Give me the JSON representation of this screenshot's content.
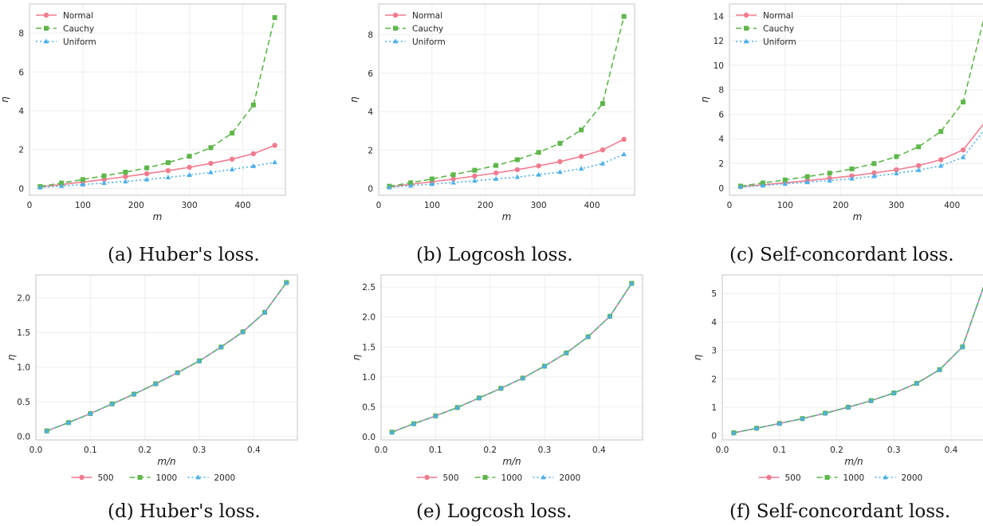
{
  "series_colors": {
    "s0": "#f17c8f",
    "s1": "#5db749",
    "s2": "#4db0ea"
  },
  "chart_data": [
    {
      "type": "line",
      "xlabel": "m",
      "ylabel": "η",
      "caption": "(a) Huber's loss.",
      "legend_position": "upper-left",
      "grid": true,
      "xlim": [
        0,
        480
      ],
      "xticks": [
        0,
        100,
        200,
        300,
        400
      ],
      "ylim": [
        -0.35,
        9.5
      ],
      "yticks": [
        0,
        2,
        4,
        6,
        8
      ],
      "x": [
        20,
        60,
        100,
        140,
        180,
        220,
        260,
        300,
        340,
        380,
        420,
        460
      ],
      "series": [
        {
          "name": "Normal",
          "values": [
            0.08,
            0.2,
            0.33,
            0.46,
            0.61,
            0.76,
            0.92,
            1.09,
            1.29,
            1.51,
            1.79,
            2.22
          ]
        },
        {
          "name": "Cauchy",
          "values": [
            0.1,
            0.28,
            0.46,
            0.65,
            0.84,
            1.06,
            1.33,
            1.66,
            2.1,
            2.85,
            4.3,
            8.8
          ]
        },
        {
          "name": "Uniform",
          "values": [
            0.05,
            0.13,
            0.2,
            0.28,
            0.36,
            0.46,
            0.57,
            0.69,
            0.83,
            0.98,
            1.15,
            1.35
          ]
        }
      ]
    },
    {
      "type": "line",
      "xlabel": "m",
      "ylabel": "η",
      "caption": "(b) Logcosh loss.",
      "legend_position": "upper-left",
      "grid": true,
      "xlim": [
        0,
        480
      ],
      "xticks": [
        0,
        100,
        200,
        300,
        400
      ],
      "ylim": [
        -0.35,
        9.6
      ],
      "yticks": [
        0,
        2,
        4,
        6,
        8
      ],
      "x": [
        20,
        60,
        100,
        140,
        180,
        220,
        260,
        300,
        340,
        380,
        420,
        460
      ],
      "series": [
        {
          "name": "Normal",
          "values": [
            0.08,
            0.22,
            0.35,
            0.49,
            0.65,
            0.81,
            0.98,
            1.18,
            1.4,
            1.67,
            2.01,
            2.56
          ]
        },
        {
          "name": "Cauchy",
          "values": [
            0.12,
            0.3,
            0.5,
            0.72,
            0.95,
            1.2,
            1.5,
            1.88,
            2.35,
            3.05,
            4.42,
            8.95
          ]
        },
        {
          "name": "Uniform",
          "values": [
            0.06,
            0.15,
            0.23,
            0.31,
            0.4,
            0.5,
            0.6,
            0.72,
            0.86,
            1.03,
            1.3,
            1.78
          ]
        }
      ]
    },
    {
      "type": "line",
      "xlabel": "m",
      "ylabel": "η",
      "caption": "(c) Self-concordant loss.",
      "legend_position": "upper-left",
      "grid": true,
      "xlim": [
        0,
        460
      ],
      "xticks": [
        0,
        100,
        200,
        300,
        400
      ],
      "ylim": [
        -0.6,
        15.0
      ],
      "yticks": [
        0,
        2,
        4,
        6,
        8,
        10,
        12,
        14
      ],
      "x": [
        20,
        60,
        100,
        140,
        180,
        220,
        260,
        300,
        340,
        380,
        420,
        460
      ],
      "series": [
        {
          "name": "Normal",
          "values": [
            0.1,
            0.25,
            0.42,
            0.58,
            0.78,
            0.98,
            1.22,
            1.48,
            1.82,
            2.3,
            3.1,
            5.4
          ]
        },
        {
          "name": "Cauchy",
          "values": [
            0.15,
            0.4,
            0.65,
            0.92,
            1.2,
            1.55,
            1.98,
            2.55,
            3.35,
            4.6,
            7.0,
            14.3
          ]
        },
        {
          "name": "Uniform",
          "values": [
            0.08,
            0.2,
            0.33,
            0.46,
            0.6,
            0.76,
            0.95,
            1.18,
            1.45,
            1.8,
            2.5,
            4.85
          ]
        }
      ]
    },
    {
      "type": "line",
      "xlabel": "m/n",
      "ylabel": "η",
      "caption": "(d) Huber's loss.",
      "legend_position": "below",
      "grid": true,
      "xlim": [
        0,
        0.48
      ],
      "xticks": [
        0.0,
        0.1,
        0.2,
        0.3,
        0.4
      ],
      "ylim": [
        -0.05,
        2.33
      ],
      "yticks": [
        0.0,
        0.5,
        1.0,
        1.5,
        2.0
      ],
      "x": [
        0.02,
        0.06,
        0.1,
        0.14,
        0.18,
        0.22,
        0.26,
        0.3,
        0.34,
        0.38,
        0.42,
        0.46
      ],
      "series": [
        {
          "name": "500",
          "values": [
            0.08,
            0.2,
            0.33,
            0.47,
            0.61,
            0.76,
            0.92,
            1.09,
            1.29,
            1.51,
            1.79,
            2.22
          ]
        },
        {
          "name": "1000",
          "values": [
            0.08,
            0.2,
            0.33,
            0.47,
            0.61,
            0.76,
            0.92,
            1.09,
            1.29,
            1.51,
            1.79,
            2.22
          ]
        },
        {
          "name": "2000",
          "values": [
            0.08,
            0.2,
            0.33,
            0.47,
            0.61,
            0.76,
            0.92,
            1.09,
            1.29,
            1.51,
            1.79,
            2.22
          ]
        }
      ]
    },
    {
      "type": "line",
      "xlabel": "m/n",
      "ylabel": "η",
      "caption": "(e) Logcosh loss.",
      "legend_position": "below",
      "grid": true,
      "xlim": [
        0,
        0.48
      ],
      "xticks": [
        0.0,
        0.1,
        0.2,
        0.3,
        0.4
      ],
      "ylim": [
        -0.05,
        2.7
      ],
      "yticks": [
        0.0,
        0.5,
        1.0,
        1.5,
        2.0,
        2.5
      ],
      "x": [
        0.02,
        0.06,
        0.1,
        0.14,
        0.18,
        0.22,
        0.26,
        0.3,
        0.34,
        0.38,
        0.42,
        0.46
      ],
      "series": [
        {
          "name": "500",
          "values": [
            0.08,
            0.22,
            0.35,
            0.49,
            0.65,
            0.81,
            0.98,
            1.18,
            1.4,
            1.67,
            2.01,
            2.56
          ]
        },
        {
          "name": "1000",
          "values": [
            0.08,
            0.22,
            0.35,
            0.49,
            0.65,
            0.81,
            0.98,
            1.18,
            1.4,
            1.67,
            2.01,
            2.56
          ]
        },
        {
          "name": "2000",
          "values": [
            0.08,
            0.22,
            0.35,
            0.49,
            0.65,
            0.81,
            0.98,
            1.18,
            1.4,
            1.67,
            2.01,
            2.56
          ]
        }
      ]
    },
    {
      "type": "line",
      "xlabel": "m/n",
      "ylabel": "η",
      "caption": "(f) Self-concordant loss.",
      "legend_position": "below",
      "grid": true,
      "xlim": [
        0,
        0.46
      ],
      "xticks": [
        0.0,
        0.1,
        0.2,
        0.3,
        0.4
      ],
      "ylim": [
        -0.15,
        5.65
      ],
      "yticks": [
        0,
        1,
        2,
        3,
        4,
        5
      ],
      "x": [
        0.02,
        0.06,
        0.1,
        0.14,
        0.18,
        0.22,
        0.26,
        0.3,
        0.34,
        0.38,
        0.42,
        0.46
      ],
      "series": [
        {
          "name": "500",
          "values": [
            0.1,
            0.26,
            0.43,
            0.6,
            0.79,
            1.0,
            1.23,
            1.5,
            1.84,
            2.32,
            3.12,
            5.42
          ]
        },
        {
          "name": "1000",
          "values": [
            0.1,
            0.26,
            0.43,
            0.6,
            0.79,
            1.0,
            1.23,
            1.5,
            1.84,
            2.32,
            3.12,
            5.42
          ]
        },
        {
          "name": "2000",
          "values": [
            0.1,
            0.26,
            0.43,
            0.6,
            0.79,
            1.0,
            1.23,
            1.5,
            1.84,
            2.32,
            3.12,
            5.42
          ]
        }
      ]
    }
  ]
}
